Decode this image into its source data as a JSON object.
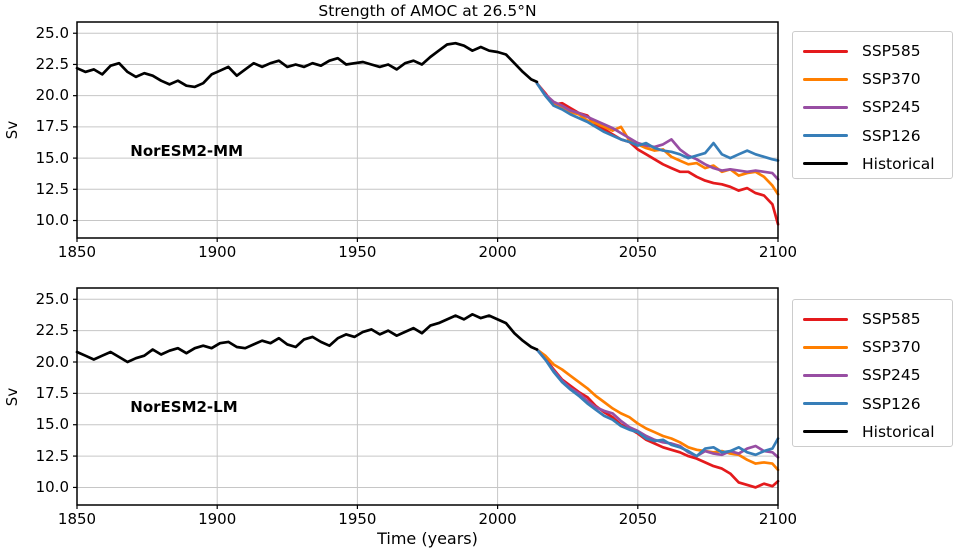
{
  "title": "Strength of AMOC at 26.5°N",
  "xlabel": "Time (years)",
  "ylabel": "Sv",
  "colors": {
    "ssp585": "#e41a1c",
    "ssp370": "#ff7f00",
    "ssp245": "#984ea3",
    "ssp126": "#377eb8",
    "historical": "#000000",
    "grid": "#c6c6c6",
    "spine": "#000000",
    "legend_border": "#cccccc"
  },
  "legend": {
    "entries": [
      {
        "label": "SSP585",
        "color": "#e41a1c"
      },
      {
        "label": "SSP370",
        "color": "#ff7f00"
      },
      {
        "label": "SSP245",
        "color": "#984ea3"
      },
      {
        "label": "SSP126",
        "color": "#377eb8"
      },
      {
        "label": "Historical",
        "color": "#000000"
      }
    ]
  },
  "chart_data": [
    {
      "type": "line",
      "panel_label": "NorESM2-MM",
      "panel_label_pos": {
        "x": 1869,
        "y": 15.6
      },
      "ylabel": "Sv",
      "xlim": [
        1850,
        2100
      ],
      "ylim": [
        8.6,
        25.9
      ],
      "grid": true,
      "xticks": {
        "values": [
          1850,
          1900,
          1950,
          2000,
          2050,
          2100
        ],
        "labels": [
          "1850",
          "1900",
          "1950",
          "2000",
          "2050",
          "2100"
        ]
      },
      "yticks": {
        "values": [
          10.0,
          12.5,
          15.0,
          17.5,
          20.0,
          22.5,
          25.0
        ],
        "labels": [
          "10.0",
          "12.5",
          "15.0",
          "17.5",
          "20.0",
          "22.5",
          "25.0"
        ]
      },
      "series": [
        {
          "name": "SSP585",
          "color": "#e41a1c",
          "x": [
            2014,
            2017,
            2020,
            2023,
            2026,
            2029,
            2032,
            2035,
            2038,
            2041,
            2044,
            2047,
            2050,
            2053,
            2056,
            2059,
            2062,
            2065,
            2068,
            2071,
            2074,
            2077,
            2080,
            2083,
            2086,
            2089,
            2092,
            2095,
            2098,
            2100
          ],
          "y": [
            21.0,
            20.2,
            19.3,
            19.4,
            19.0,
            18.6,
            18.4,
            17.7,
            17.3,
            16.9,
            16.5,
            16.3,
            15.7,
            15.3,
            14.9,
            14.5,
            14.2,
            13.9,
            13.9,
            13.5,
            13.2,
            13.0,
            12.9,
            12.7,
            12.4,
            12.6,
            12.2,
            12.0,
            11.3,
            9.7
          ]
        },
        {
          "name": "SSP370",
          "color": "#ff7f00",
          "x": [
            2014,
            2017,
            2020,
            2023,
            2026,
            2029,
            2032,
            2035,
            2038,
            2041,
            2044,
            2047,
            2050,
            2053,
            2056,
            2059,
            2062,
            2065,
            2068,
            2071,
            2074,
            2077,
            2080,
            2083,
            2086,
            2089,
            2092,
            2095,
            2098,
            2100
          ],
          "y": [
            21.0,
            20.1,
            19.4,
            19.1,
            18.7,
            18.5,
            18.0,
            17.8,
            17.5,
            17.2,
            17.5,
            16.4,
            16.1,
            15.8,
            15.6,
            15.7,
            15.1,
            14.8,
            14.5,
            14.6,
            14.2,
            14.4,
            13.9,
            14.1,
            13.6,
            13.8,
            13.9,
            13.5,
            12.8,
            12.1
          ]
        },
        {
          "name": "SSP245",
          "color": "#984ea3",
          "x": [
            2014,
            2017,
            2020,
            2023,
            2026,
            2029,
            2032,
            2035,
            2038,
            2041,
            2044,
            2047,
            2050,
            2053,
            2056,
            2059,
            2062,
            2065,
            2068,
            2071,
            2074,
            2077,
            2080,
            2083,
            2086,
            2089,
            2092,
            2095,
            2098,
            2100
          ],
          "y": [
            21.0,
            20.1,
            19.5,
            19.2,
            18.8,
            18.6,
            18.3,
            18.0,
            17.7,
            17.4,
            17.0,
            16.6,
            16.2,
            16.0,
            15.9,
            16.1,
            16.5,
            15.7,
            15.2,
            14.9,
            14.5,
            14.2,
            14.0,
            14.1,
            14.0,
            13.9,
            14.0,
            13.9,
            13.8,
            13.3
          ]
        },
        {
          "name": "SSP126",
          "color": "#377eb8",
          "x": [
            2014,
            2017,
            2020,
            2023,
            2026,
            2029,
            2032,
            2035,
            2038,
            2041,
            2044,
            2047,
            2050,
            2053,
            2056,
            2059,
            2062,
            2065,
            2068,
            2071,
            2074,
            2077,
            2080,
            2083,
            2086,
            2089,
            2092,
            2095,
            2098,
            2100
          ],
          "y": [
            21.0,
            20.0,
            19.2,
            18.9,
            18.5,
            18.2,
            17.9,
            17.5,
            17.1,
            16.8,
            16.5,
            16.3,
            16.0,
            16.2,
            15.8,
            15.6,
            15.5,
            15.3,
            15.0,
            15.2,
            15.4,
            16.2,
            15.3,
            15.0,
            15.3,
            15.6,
            15.3,
            15.1,
            14.9,
            14.8
          ]
        },
        {
          "name": "Historical",
          "color": "#000000",
          "x": [
            1850,
            1853,
            1856,
            1859,
            1862,
            1865,
            1868,
            1871,
            1874,
            1877,
            1880,
            1883,
            1886,
            1889,
            1892,
            1895,
            1898,
            1901,
            1904,
            1907,
            1910,
            1913,
            1916,
            1919,
            1922,
            1925,
            1928,
            1931,
            1934,
            1937,
            1940,
            1943,
            1946,
            1949,
            1952,
            1955,
            1958,
            1961,
            1964,
            1967,
            1970,
            1973,
            1976,
            1979,
            1982,
            1985,
            1988,
            1991,
            1994,
            1997,
            2000,
            2003,
            2006,
            2009,
            2012,
            2014
          ],
          "y": [
            22.2,
            21.9,
            22.1,
            21.7,
            22.4,
            22.6,
            21.9,
            21.5,
            21.8,
            21.6,
            21.2,
            20.9,
            21.2,
            20.8,
            20.7,
            21.0,
            21.7,
            22.0,
            22.3,
            21.6,
            22.1,
            22.6,
            22.3,
            22.6,
            22.8,
            22.3,
            22.5,
            22.3,
            22.6,
            22.4,
            22.8,
            23.0,
            22.5,
            22.6,
            22.7,
            22.5,
            22.3,
            22.5,
            22.1,
            22.6,
            22.8,
            22.5,
            23.1,
            23.6,
            24.1,
            24.2,
            24.0,
            23.6,
            23.9,
            23.6,
            23.5,
            23.3,
            22.6,
            21.9,
            21.3,
            21.1
          ]
        }
      ]
    },
    {
      "type": "line",
      "panel_label": "NorESM2-LM",
      "panel_label_pos": {
        "x": 1869,
        "y": 16.4
      },
      "ylabel": "Sv",
      "xlim": [
        1850,
        2100
      ],
      "ylim": [
        8.6,
        25.9
      ],
      "grid": true,
      "xticks": {
        "values": [
          1850,
          1900,
          1950,
          2000,
          2050,
          2100
        ],
        "labels": [
          "1850",
          "1900",
          "1950",
          "2000",
          "2050",
          "2100"
        ]
      },
      "yticks": {
        "values": [
          10.0,
          12.5,
          15.0,
          17.5,
          20.0,
          22.5,
          25.0
        ],
        "labels": [
          "10.0",
          "12.5",
          "15.0",
          "17.5",
          "20.0",
          "22.5",
          "25.0"
        ]
      },
      "series": [
        {
          "name": "SSP585",
          "color": "#e41a1c",
          "x": [
            2014,
            2017,
            2020,
            2023,
            2026,
            2029,
            2032,
            2035,
            2038,
            2041,
            2044,
            2047,
            2050,
            2053,
            2056,
            2059,
            2062,
            2065,
            2068,
            2071,
            2074,
            2077,
            2080,
            2083,
            2086,
            2089,
            2092,
            2095,
            2098,
            2100
          ],
          "y": [
            21.0,
            20.3,
            19.4,
            18.6,
            18.1,
            17.6,
            17.2,
            16.5,
            16.0,
            15.6,
            15.0,
            14.7,
            14.3,
            13.8,
            13.5,
            13.2,
            13.0,
            12.8,
            12.5,
            12.3,
            12.0,
            11.7,
            11.5,
            11.1,
            10.4,
            10.2,
            10.0,
            10.3,
            10.1,
            10.5
          ]
        },
        {
          "name": "SSP370",
          "color": "#ff7f00",
          "x": [
            2014,
            2017,
            2020,
            2023,
            2026,
            2029,
            2032,
            2035,
            2038,
            2041,
            2044,
            2047,
            2050,
            2053,
            2056,
            2059,
            2062,
            2065,
            2068,
            2071,
            2074,
            2077,
            2080,
            2083,
            2086,
            2089,
            2092,
            2095,
            2098,
            2100
          ],
          "y": [
            21.0,
            20.5,
            19.8,
            19.4,
            18.9,
            18.4,
            17.9,
            17.3,
            16.8,
            16.3,
            15.9,
            15.6,
            15.1,
            14.7,
            14.4,
            14.1,
            13.9,
            13.6,
            13.2,
            13.0,
            12.9,
            12.8,
            12.9,
            12.7,
            12.6,
            12.2,
            11.9,
            12.0,
            11.9,
            11.4
          ]
        },
        {
          "name": "SSP245",
          "color": "#984ea3",
          "x": [
            2014,
            2017,
            2020,
            2023,
            2026,
            2029,
            2032,
            2035,
            2038,
            2041,
            2044,
            2047,
            2050,
            2053,
            2056,
            2059,
            2062,
            2065,
            2068,
            2071,
            2074,
            2077,
            2080,
            2083,
            2086,
            2089,
            2092,
            2095,
            2098,
            2100
          ],
          "y": [
            21.0,
            20.2,
            19.3,
            18.5,
            17.9,
            17.5,
            16.9,
            16.4,
            16.1,
            15.9,
            15.3,
            14.8,
            14.5,
            14.1,
            13.8,
            13.6,
            13.5,
            13.3,
            12.8,
            12.5,
            12.9,
            12.7,
            12.6,
            12.9,
            12.7,
            13.1,
            13.3,
            12.9,
            12.8,
            12.4
          ]
        },
        {
          "name": "SSP126",
          "color": "#377eb8",
          "x": [
            2014,
            2017,
            2020,
            2023,
            2026,
            2029,
            2032,
            2035,
            2038,
            2041,
            2044,
            2047,
            2050,
            2053,
            2056,
            2059,
            2062,
            2065,
            2068,
            2071,
            2074,
            2077,
            2080,
            2083,
            2086,
            2089,
            2092,
            2095,
            2098,
            2100
          ],
          "y": [
            21.0,
            20.2,
            19.2,
            18.4,
            17.8,
            17.3,
            16.7,
            16.2,
            15.7,
            15.4,
            14.9,
            14.6,
            14.4,
            13.9,
            13.7,
            13.8,
            13.4,
            13.2,
            12.9,
            12.5,
            13.1,
            13.2,
            12.8,
            12.9,
            13.2,
            12.8,
            12.6,
            12.9,
            13.1,
            13.9
          ]
        },
        {
          "name": "Historical",
          "color": "#000000",
          "x": [
            1850,
            1853,
            1856,
            1859,
            1862,
            1865,
            1868,
            1871,
            1874,
            1877,
            1880,
            1883,
            1886,
            1889,
            1892,
            1895,
            1898,
            1901,
            1904,
            1907,
            1910,
            1913,
            1916,
            1919,
            1922,
            1925,
            1928,
            1931,
            1934,
            1937,
            1940,
            1943,
            1946,
            1949,
            1952,
            1955,
            1958,
            1961,
            1964,
            1967,
            1970,
            1973,
            1976,
            1979,
            1982,
            1985,
            1988,
            1991,
            1994,
            1997,
            2000,
            2003,
            2006,
            2009,
            2012,
            2014
          ],
          "y": [
            20.8,
            20.5,
            20.2,
            20.5,
            20.8,
            20.4,
            20.0,
            20.3,
            20.5,
            21.0,
            20.6,
            20.9,
            21.1,
            20.7,
            21.1,
            21.3,
            21.1,
            21.5,
            21.6,
            21.2,
            21.1,
            21.4,
            21.7,
            21.5,
            21.9,
            21.4,
            21.2,
            21.8,
            22.0,
            21.6,
            21.3,
            21.9,
            22.2,
            22.0,
            22.4,
            22.6,
            22.2,
            22.5,
            22.1,
            22.4,
            22.7,
            22.3,
            22.9,
            23.1,
            23.4,
            23.7,
            23.4,
            23.8,
            23.5,
            23.7,
            23.4,
            23.1,
            22.3,
            21.7,
            21.2,
            21.0
          ]
        }
      ]
    }
  ]
}
